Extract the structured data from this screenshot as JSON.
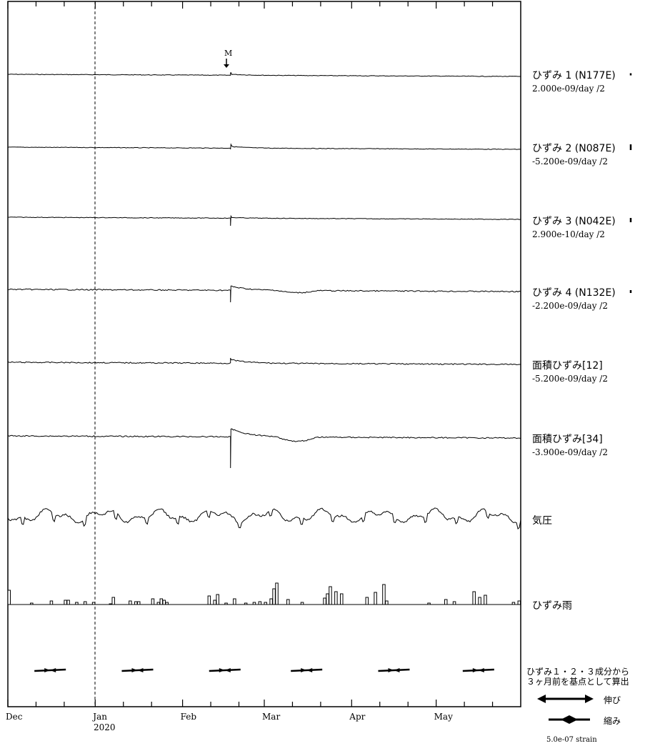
{
  "marker_label": "M",
  "x_axis": {
    "months": [
      "Dec",
      "Jan",
      "Feb",
      "Mar",
      "Apr",
      "May"
    ],
    "year_label": "2020"
  },
  "series_labels": [
    {
      "name": "ひずみ 1 (N177E)",
      "rate": "2.000e-09/day /2"
    },
    {
      "name": "ひずみ 2 (N087E)",
      "rate": "-5.200e-09/day /2"
    },
    {
      "name": "ひずみ 3 (N042E)",
      "rate": "2.900e-10/day /2"
    },
    {
      "name": "ひずみ 4 (N132E)",
      "rate": "-2.200e-09/day /2"
    },
    {
      "name": "面積ひずみ[12]",
      "rate": "-5.200e-09/day /2"
    },
    {
      "name": "面積ひずみ[34]",
      "rate": "-3.900e-09/day /2"
    },
    {
      "name": "気圧",
      "rate": ""
    },
    {
      "name": "ひずみ雨",
      "rate": ""
    }
  ],
  "principal_note": {
    "line1": "ひずみ１・２・３成分から",
    "line2": "３ヶ月前を基点として算出"
  },
  "legend": {
    "extension": "伸び",
    "contraction": "縮み",
    "scale": "5.0e-07 strain"
  },
  "chart_data": {
    "type": "line",
    "x_range_days": [
      0,
      182
    ],
    "x": "days from 2019-12-01",
    "series": [
      {
        "name": "ひずみ 1 (N177E)",
        "rate": "2.000e-09/day /2",
        "offset_at_event": -2,
        "recovery": 3
      },
      {
        "name": "ひずみ 2 (N087E)",
        "rate": "-5.200e-09/day /2",
        "offset_at_event": 3,
        "recovery": 5
      },
      {
        "name": "ひずみ 3 (N042E)",
        "rate": "2.900e-10/day /2",
        "offset_at_event": 12,
        "recovery": 2
      },
      {
        "name": "ひずみ 4 (N132E)",
        "rate": "-2.200e-09/day /2",
        "offset_at_event": 18,
        "recovery": 6
      },
      {
        "name": "面積ひずみ[12]",
        "rate": "-5.200e-09/day /2",
        "offset_at_event": -6,
        "recovery": 5
      },
      {
        "name": "面積ひずみ[34]",
        "rate": "-3.900e-09/day /2",
        "offset_at_event": 45,
        "recovery": 12
      }
    ],
    "event_day": 79,
    "rain_bars": [
      {
        "day": 0,
        "h": 20
      },
      {
        "day": 8,
        "h": 2
      },
      {
        "day": 15,
        "h": 5
      },
      {
        "day": 20,
        "h": 6
      },
      {
        "day": 21,
        "h": 6
      },
      {
        "day": 24,
        "h": 3
      },
      {
        "day": 27,
        "h": 4
      },
      {
        "day": 30,
        "h": 3
      },
      {
        "day": 36,
        "h": 1
      },
      {
        "day": 37,
        "h": 10
      },
      {
        "day": 43,
        "h": 5
      },
      {
        "day": 45,
        "h": 4
      },
      {
        "day": 46,
        "h": 4
      },
      {
        "day": 51,
        "h": 8
      },
      {
        "day": 53,
        "h": 3
      },
      {
        "day": 54,
        "h": 8
      },
      {
        "day": 55,
        "h": 6
      },
      {
        "day": 56,
        "h": 3
      },
      {
        "day": 71,
        "h": 12
      },
      {
        "day": 73,
        "h": 6
      },
      {
        "day": 74,
        "h": 14
      },
      {
        "day": 77,
        "h": 2
      },
      {
        "day": 80,
        "h": 8
      },
      {
        "day": 84,
        "h": 2
      },
      {
        "day": 87,
        "h": 3
      },
      {
        "day": 89,
        "h": 4
      },
      {
        "day": 91,
        "h": 3
      },
      {
        "day": 93,
        "h": 8
      },
      {
        "day": 94,
        "h": 22
      },
      {
        "day": 95,
        "h": 30
      },
      {
        "day": 99,
        "h": 7
      },
      {
        "day": 104,
        "h": 3
      },
      {
        "day": 112,
        "h": 9
      },
      {
        "day": 113,
        "h": 15
      },
      {
        "day": 114,
        "h": 25
      },
      {
        "day": 116,
        "h": 18
      },
      {
        "day": 118,
        "h": 15
      },
      {
        "day": 127,
        "h": 10
      },
      {
        "day": 130,
        "h": 17
      },
      {
        "day": 133,
        "h": 28
      },
      {
        "day": 134,
        "h": 5
      },
      {
        "day": 149,
        "h": 2
      },
      {
        "day": 155,
        "h": 7
      },
      {
        "day": 158,
        "h": 4
      },
      {
        "day": 165,
        "h": 18
      },
      {
        "day": 167,
        "h": 10
      },
      {
        "day": 169,
        "h": 13
      },
      {
        "day": 179,
        "h": 3
      },
      {
        "day": 181,
        "h": 5
      }
    ],
    "principal_arrows": [
      {
        "month": "Dec",
        "type": "contraction"
      },
      {
        "month": "Jan",
        "type": "contraction"
      },
      {
        "month": "Feb",
        "type": "contraction"
      },
      {
        "month": "Mar",
        "type": "contraction"
      },
      {
        "month": "Apr",
        "type": "contraction"
      },
      {
        "month": "May",
        "type": "contraction"
      }
    ]
  }
}
